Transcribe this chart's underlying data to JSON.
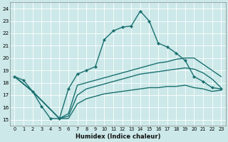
{
  "xlabel": "Humidex (Indice chaleur)",
  "xlim": [
    -0.5,
    23.5
  ],
  "ylim": [
    14.5,
    24.5
  ],
  "yticks": [
    15,
    16,
    17,
    18,
    19,
    20,
    21,
    22,
    23,
    24
  ],
  "xticks": [
    0,
    1,
    2,
    3,
    4,
    5,
    6,
    7,
    8,
    9,
    10,
    11,
    12,
    13,
    14,
    15,
    16,
    17,
    18,
    19,
    20,
    21,
    22,
    23
  ],
  "bg_color": "#cce8e8",
  "grid_color": "#b8d8d8",
  "line_color": "#1a7070",
  "marked_line": {
    "x": [
      0,
      1,
      2,
      3,
      4,
      5,
      6,
      7,
      8,
      9,
      10,
      11,
      12,
      13,
      14,
      15,
      16,
      17,
      18,
      19,
      20,
      21,
      22,
      23
    ],
    "y": [
      18.5,
      18.2,
      17.3,
      16.1,
      15.1,
      15.1,
      17.5,
      18.7,
      19.0,
      19.3,
      21.5,
      22.2,
      22.5,
      22.6,
      23.8,
      23.0,
      21.2,
      20.9,
      20.4,
      19.8,
      18.5,
      18.1,
      17.6,
      17.5
    ]
  },
  "line_upper": {
    "x": [
      0,
      2,
      5,
      6,
      7,
      8,
      9,
      10,
      11,
      12,
      13,
      14,
      15,
      16,
      17,
      18,
      19,
      20,
      21,
      22,
      23
    ],
    "y": [
      18.5,
      17.3,
      15.1,
      15.5,
      17.8,
      18.0,
      18.2,
      18.4,
      18.6,
      18.8,
      19.0,
      19.2,
      19.4,
      19.6,
      19.7,
      19.9,
      20.0,
      20.0,
      19.5,
      19.0,
      18.5
    ]
  },
  "line_mid": {
    "x": [
      0,
      2,
      5,
      6,
      7,
      8,
      9,
      10,
      11,
      12,
      13,
      14,
      15,
      16,
      17,
      18,
      19,
      20,
      21,
      22,
      23
    ],
    "y": [
      18.5,
      17.3,
      15.1,
      15.3,
      17.0,
      17.5,
      17.7,
      17.9,
      18.1,
      18.3,
      18.5,
      18.7,
      18.8,
      18.9,
      19.0,
      19.1,
      19.2,
      19.1,
      18.8,
      18.3,
      17.6
    ]
  },
  "line_lower": {
    "x": [
      0,
      2,
      5,
      6,
      7,
      8,
      9,
      10,
      11,
      12,
      13,
      14,
      15,
      16,
      17,
      18,
      19,
      20,
      21,
      22,
      23
    ],
    "y": [
      18.5,
      17.3,
      15.1,
      15.1,
      16.3,
      16.7,
      16.9,
      17.1,
      17.2,
      17.3,
      17.4,
      17.5,
      17.6,
      17.6,
      17.7,
      17.7,
      17.8,
      17.6,
      17.5,
      17.3,
      17.4
    ]
  }
}
